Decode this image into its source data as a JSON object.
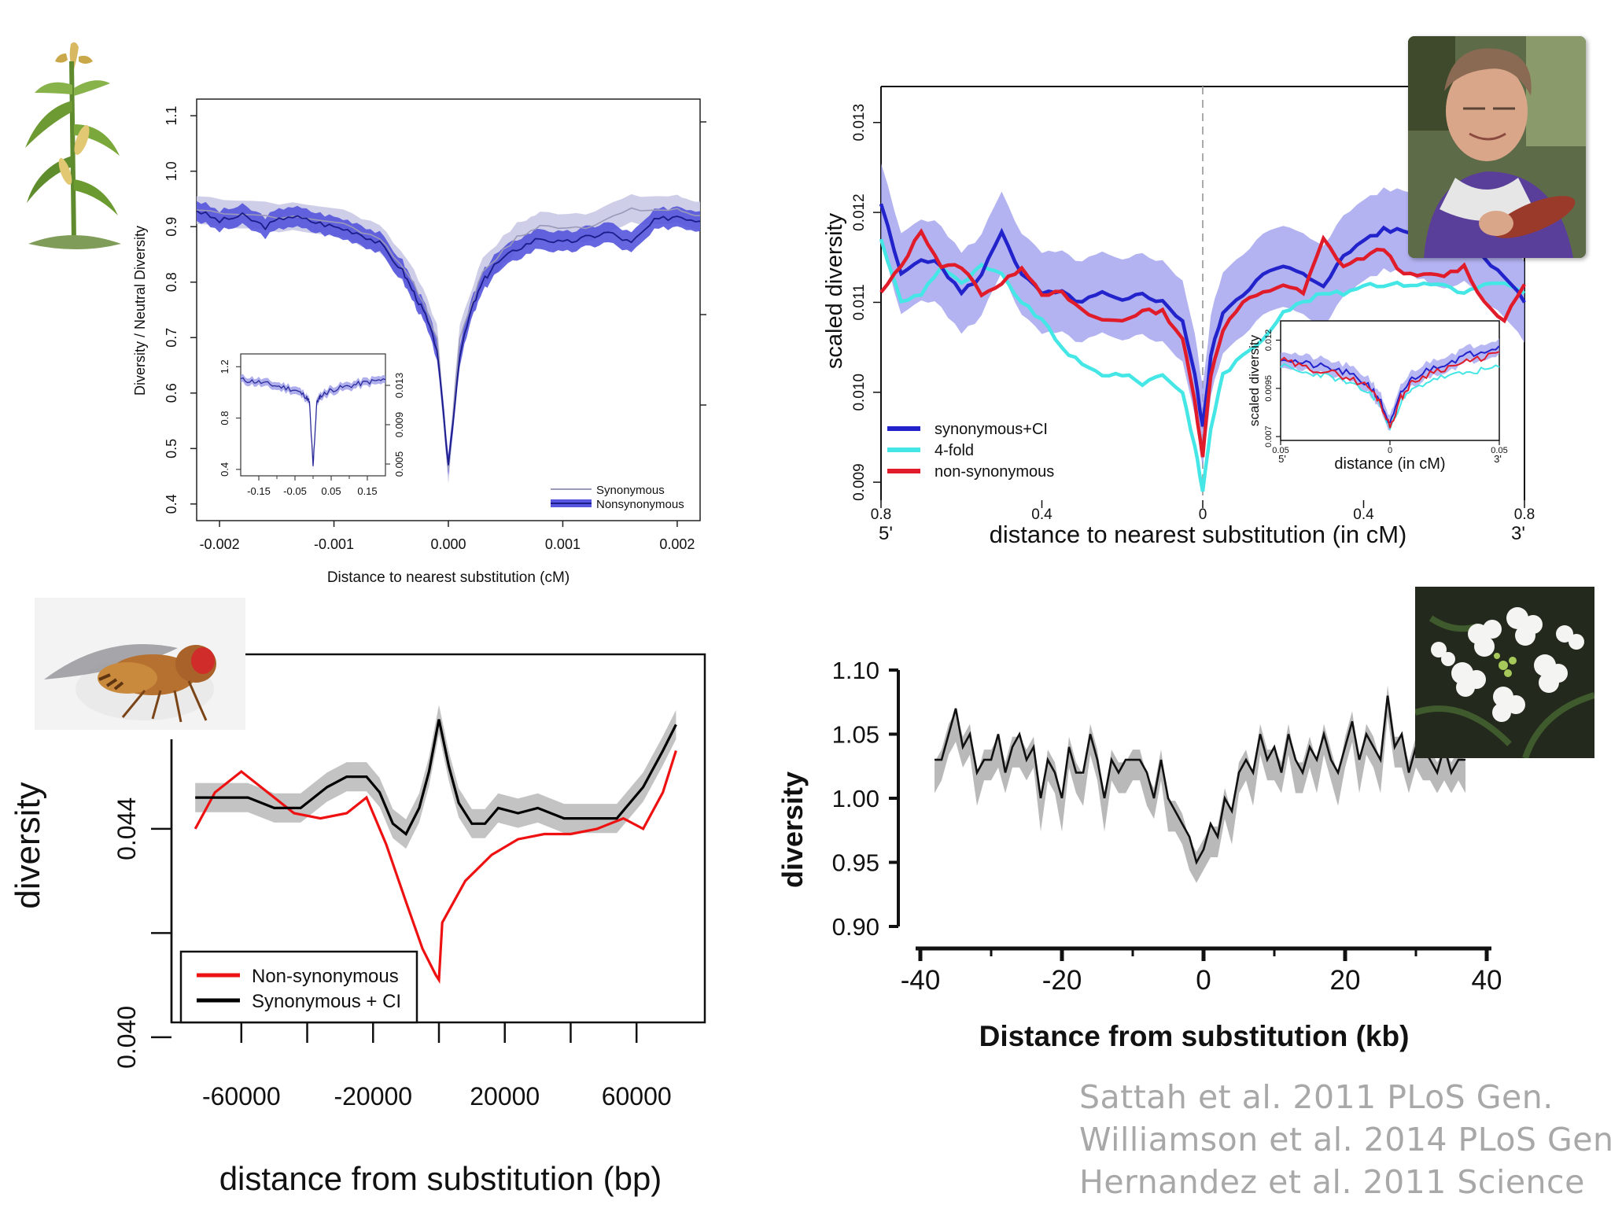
{
  "panels": {
    "maize": {
      "chart_data": {
        "type": "line",
        "xlabel": "Distance to nearest substitution (cM)",
        "ylabel": "Diversity / Neutral Diversity",
        "xlim": [
          -0.0022,
          0.0022
        ],
        "ylim": [
          0.37,
          1.13
        ],
        "x_ticks": [
          "-0.002",
          "-0.001",
          "0.000",
          "0.001",
          "0.002"
        ],
        "y_ticks": [
          "0.4",
          "0.5",
          "0.6",
          "0.7",
          "0.8",
          "0.9",
          "1.0",
          "1.1"
        ],
        "legend": {
          "position": "bottom-right",
          "entries": [
            "Synonymous",
            "Nonsynonymous"
          ]
        },
        "colors": {
          "synonymous": "#9a9ab8",
          "synonymous_band": "#c9c9e6",
          "nonsynonymous": "#1b1b8a",
          "nonsynonymous_band": "#5555dd"
        },
        "series": [
          {
            "name": "Synonymous",
            "x": [
              -0.0022,
              -0.0016,
              -0.001,
              -0.0006,
              -0.0003,
              -0.0001,
              0.0,
              0.0001,
              0.0003,
              0.0006,
              0.0008,
              0.0012,
              0.0016,
              0.002,
              0.0022
            ],
            "values": [
              0.93,
              0.92,
              0.91,
              0.88,
              0.8,
              0.7,
              0.46,
              0.7,
              0.82,
              0.88,
              0.9,
              0.9,
              0.93,
              0.93,
              0.92
            ]
          },
          {
            "name": "Nonsynonymous",
            "x": [
              -0.0022,
              -0.002,
              -0.0018,
              -0.0016,
              -0.0014,
              -0.0012,
              -0.001,
              -0.0008,
              -0.0006,
              -0.0004,
              -0.0003,
              -0.0002,
              -0.0001,
              0.0,
              0.0001,
              0.0002,
              0.0003,
              0.0004,
              0.0006,
              0.0008,
              0.001,
              0.0012,
              0.0014,
              0.0016,
              0.0018,
              0.002,
              0.0022
            ],
            "values": [
              0.93,
              0.91,
              0.92,
              0.9,
              0.92,
              0.91,
              0.9,
              0.89,
              0.87,
              0.82,
              0.78,
              0.74,
              0.68,
              0.47,
              0.67,
              0.75,
              0.8,
              0.83,
              0.86,
              0.88,
              0.87,
              0.88,
              0.89,
              0.87,
              0.91,
              0.92,
              0.91
            ]
          }
        ],
        "inset": {
          "x_ticks": [
            "-0.15",
            "-0.05",
            "0.05",
            "0.15"
          ],
          "y_left_ticks": [
            "0.4",
            "0.8",
            "1.2"
          ],
          "y_right_ticks": [
            "0.005",
            "0.009",
            "0.013"
          ],
          "xlim": [
            -0.2,
            0.2
          ],
          "ylim": [
            0.35,
            1.3
          ],
          "x": [
            -0.2,
            -0.15,
            -0.1,
            -0.05,
            -0.02,
            -0.01,
            0.0,
            0.01,
            0.02,
            0.05,
            0.1,
            0.15,
            0.2
          ],
          "values": [
            1.1,
            1.08,
            1.05,
            1.02,
            0.97,
            0.92,
            0.42,
            0.92,
            0.97,
            1.02,
            1.05,
            1.08,
            1.1
          ]
        }
      }
    },
    "human": {
      "chart_data": {
        "type": "line",
        "xlabel": "distance to nearest substitution (in cM)",
        "ylabel": "scaled diversity",
        "xlim": [
          -0.8,
          0.8
        ],
        "ylim": [
          0.0088,
          0.0134
        ],
        "x_ticks": [
          "0.8",
          "0.4",
          "0",
          "0.4",
          "0.8"
        ],
        "x_end_labels": [
          "5'",
          "3'"
        ],
        "y_ticks": [
          "0.009",
          "0.010",
          "0.011",
          "0.012",
          "0.013"
        ],
        "legend": {
          "position": "bottom-left",
          "entries": [
            "synonymous+CI",
            "4-fold",
            "non-synonymous"
          ]
        },
        "colors": {
          "synonymous_ci": "#2323cc",
          "band": "#9999ee",
          "fourfold": "#44e6e6",
          "nonsyn": "#e11c2a"
        },
        "series": [
          {
            "name": "synonymous+CI",
            "x": [
              -0.8,
              -0.75,
              -0.7,
              -0.65,
              -0.6,
              -0.55,
              -0.5,
              -0.45,
              -0.4,
              -0.35,
              -0.3,
              -0.25,
              -0.2,
              -0.15,
              -0.1,
              -0.05,
              -0.02,
              0.0,
              0.02,
              0.05,
              0.1,
              0.15,
              0.2,
              0.25,
              0.3,
              0.35,
              0.4,
              0.45,
              0.5,
              0.55,
              0.6,
              0.65,
              0.7,
              0.75,
              0.8
            ],
            "values": [
              0.0121,
              0.0113,
              0.0115,
              0.0114,
              0.0111,
              0.0113,
              0.0118,
              0.0113,
              0.0111,
              0.0111,
              0.011,
              0.0111,
              0.011,
              0.0111,
              0.011,
              0.0108,
              0.0102,
              0.0096,
              0.0104,
              0.0109,
              0.0111,
              0.0113,
              0.0114,
              0.0113,
              0.0112,
              0.0115,
              0.0117,
              0.0118,
              0.0118,
              0.0117,
              0.0116,
              0.0117,
              0.0115,
              0.0113,
              0.011
            ]
          },
          {
            "name": "4-fold",
            "x": [
              -0.8,
              -0.75,
              -0.7,
              -0.65,
              -0.6,
              -0.55,
              -0.5,
              -0.45,
              -0.4,
              -0.35,
              -0.3,
              -0.25,
              -0.2,
              -0.15,
              -0.1,
              -0.05,
              -0.02,
              0.0,
              0.02,
              0.05,
              0.1,
              0.15,
              0.2,
              0.25,
              0.3,
              0.35,
              0.4,
              0.45,
              0.5,
              0.55,
              0.6,
              0.65,
              0.7,
              0.75,
              0.8
            ],
            "values": [
              0.0117,
              0.011,
              0.0111,
              0.0114,
              0.0112,
              0.0114,
              0.0113,
              0.011,
              0.0108,
              0.0105,
              0.0103,
              0.0102,
              0.0102,
              0.0101,
              0.0102,
              0.01,
              0.0094,
              0.0089,
              0.0096,
              0.0102,
              0.0104,
              0.0106,
              0.0109,
              0.011,
              0.0111,
              0.0111,
              0.0112,
              0.0112,
              0.0112,
              0.0112,
              0.0112,
              0.0111,
              0.0112,
              0.0112,
              0.0111
            ]
          },
          {
            "name": "non-synonymous",
            "x": [
              -0.8,
              -0.75,
              -0.7,
              -0.65,
              -0.6,
              -0.55,
              -0.5,
              -0.45,
              -0.4,
              -0.35,
              -0.3,
              -0.25,
              -0.2,
              -0.15,
              -0.1,
              -0.05,
              -0.02,
              0.0,
              0.02,
              0.05,
              0.1,
              0.15,
              0.2,
              0.25,
              0.3,
              0.35,
              0.4,
              0.45,
              0.5,
              0.55,
              0.6,
              0.65,
              0.7,
              0.75,
              0.8
            ],
            "values": [
              0.0111,
              0.0114,
              0.0118,
              0.0114,
              0.0114,
              0.0111,
              0.0112,
              0.0114,
              0.0111,
              0.0111,
              0.0109,
              0.0108,
              0.0108,
              0.0109,
              0.0109,
              0.0106,
              0.0099,
              0.0093,
              0.0102,
              0.0107,
              0.011,
              0.0111,
              0.0112,
              0.0111,
              0.0117,
              0.0114,
              0.0115,
              0.0116,
              0.0113,
              0.0113,
              0.0113,
              0.0114,
              0.011,
              0.0108,
              0.0112
            ]
          }
        ],
        "inset": {
          "ylabel": "scaled diversity",
          "xlabel": "distance (in cM)",
          "x_ticks": [
            "0.05",
            "0",
            "0.05"
          ],
          "x_end_labels": [
            "5'",
            "3'"
          ],
          "y_ticks": [
            "0.007",
            "0.0095",
            "0.012"
          ],
          "xlim": [
            -0.05,
            0.05
          ],
          "ylim": [
            0.0068,
            0.013
          ],
          "x": [
            -0.05,
            -0.04,
            -0.03,
            -0.02,
            -0.01,
            -0.005,
            0.0,
            0.005,
            0.01,
            0.02,
            0.03,
            0.04,
            0.05
          ],
          "synonymous_ci": [
            0.0111,
            0.0108,
            0.0106,
            0.0103,
            0.0097,
            0.009,
            0.0076,
            0.0092,
            0.01,
            0.0106,
            0.011,
            0.0114,
            0.0117
          ],
          "fourfold": [
            0.0107,
            0.0103,
            0.0102,
            0.0098,
            0.0093,
            0.0088,
            0.0074,
            0.0088,
            0.0094,
            0.01,
            0.0102,
            0.0104,
            0.0106
          ],
          "nonsyn": [
            0.011,
            0.0106,
            0.0104,
            0.0101,
            0.0096,
            0.0089,
            0.0075,
            0.009,
            0.0098,
            0.0104,
            0.0107,
            0.011,
            0.0114
          ]
        }
      }
    },
    "fly": {
      "chart_data": {
        "type": "line",
        "xlabel": "distance from substitution (bp)",
        "ylabel": "diversity",
        "xlim": [
          -75000,
          75000
        ],
        "ylim": [
          0.0395,
          0.0475
        ],
        "x_ticks": [
          "-60000",
          "-20000",
          "20000",
          "60000"
        ],
        "x_tick_values": [
          -60000,
          -20000,
          20000,
          60000
        ],
        "x_minor_values": [
          -40000,
          0,
          40000
        ],
        "y_ticks": [
          "0.040",
          "0.044"
        ],
        "y_tick_values": [
          0.04,
          0.044
        ],
        "y_minor_values": [
          0.042,
          0.046
        ],
        "legend": {
          "position": "bottom-left",
          "entries": [
            "Non-synonymous",
            "Synonymous + CI"
          ]
        },
        "colors": {
          "nonsyn": "#ee1111",
          "syn": "#000000",
          "band": "#bdbdbd"
        },
        "series": [
          {
            "name": "Non-synonymous",
            "x": [
              -74000,
              -68000,
              -60000,
              -52000,
              -44000,
              -36000,
              -28000,
              -22000,
              -16000,
              -10000,
              -5000,
              -1000,
              0,
              1000,
              8000,
              16000,
              24000,
              32000,
              40000,
              48000,
              56000,
              62000,
              68000,
              72000
            ],
            "values": [
              0.044,
              0.0447,
              0.0451,
              0.0447,
              0.0443,
              0.0442,
              0.0443,
              0.0446,
              0.0437,
              0.0426,
              0.0417,
              0.0412,
              0.0411,
              0.0422,
              0.043,
              0.0435,
              0.0438,
              0.0439,
              0.0439,
              0.044,
              0.0442,
              0.044,
              0.0447,
              0.0455
            ]
          },
          {
            "name": "Synonymous + CI",
            "x": [
              -74000,
              -66000,
              -58000,
              -50000,
              -42000,
              -34000,
              -28000,
              -22000,
              -18000,
              -14000,
              -10000,
              -6000,
              -3000,
              0,
              3000,
              6000,
              10000,
              14000,
              18000,
              24000,
              30000,
              38000,
              46000,
              54000,
              62000,
              68000,
              72000
            ],
            "values": [
              0.0446,
              0.0446,
              0.0446,
              0.0444,
              0.0444,
              0.0448,
              0.045,
              0.045,
              0.0447,
              0.0441,
              0.0439,
              0.0444,
              0.0451,
              0.0461,
              0.0452,
              0.0445,
              0.0441,
              0.0441,
              0.0444,
              0.0443,
              0.0444,
              0.0442,
              0.0442,
              0.0442,
              0.0448,
              0.0455,
              0.046
            ]
          }
        ]
      }
    },
    "arabidopsis": {
      "chart_data": {
        "type": "line",
        "xlabel": "Distance from substitution (kb)",
        "ylabel": "diversity",
        "xlim": [
          -40,
          40
        ],
        "ylim": [
          0.895,
          1.105
        ],
        "x_ticks": [
          "-40",
          "-20",
          "0",
          "20",
          "40"
        ],
        "y_ticks": [
          "0.90",
          "0.95",
          "1.00",
          "1.05",
          "1.10"
        ],
        "colors": {
          "line": "#111111",
          "band": "#b5b5b5"
        },
        "series": [
          {
            "name": "",
            "x": [
              -38,
              -37,
              -36,
              -35,
              -34,
              -33,
              -32,
              -31,
              -30,
              -29,
              -28,
              -27,
              -26,
              -25,
              -24,
              -23,
              -22,
              -21,
              -20,
              -19,
              -18,
              -17,
              -16,
              -15,
              -14,
              -13,
              -12,
              -11,
              -10,
              -9,
              -8,
              -7,
              -6,
              -5,
              -4,
              -3,
              -2,
              -1,
              0,
              1,
              2,
              3,
              4,
              5,
              6,
              7,
              8,
              9,
              10,
              11,
              12,
              13,
              14,
              15,
              16,
              17,
              18,
              19,
              20,
              21,
              22,
              23,
              24,
              25,
              26,
              27,
              28,
              29,
              30,
              31,
              32,
              33,
              34,
              35,
              36,
              37
            ],
            "values": [
              1.03,
              1.03,
              1.05,
              1.07,
              1.04,
              1.05,
              1.02,
              1.03,
              1.03,
              1.05,
              1.02,
              1.04,
              1.05,
              1.03,
              1.04,
              1.0,
              1.03,
              1.02,
              1.0,
              1.04,
              1.02,
              1.02,
              1.05,
              1.03,
              1.0,
              1.03,
              1.02,
              1.03,
              1.03,
              1.03,
              1.02,
              1.0,
              1.03,
              1.0,
              0.99,
              0.98,
              0.97,
              0.95,
              0.96,
              0.98,
              0.97,
              1.0,
              0.99,
              1.02,
              1.03,
              1.02,
              1.05,
              1.03,
              1.04,
              1.02,
              1.05,
              1.03,
              1.02,
              1.04,
              1.03,
              1.05,
              1.03,
              1.02,
              1.04,
              1.06,
              1.03,
              1.05,
              1.04,
              1.03,
              1.08,
              1.04,
              1.05,
              1.02,
              1.04,
              1.04,
              1.03,
              1.02,
              1.04,
              1.02,
              1.03,
              1.03
            ]
          }
        ]
      }
    }
  },
  "citations": [
    "Sattah et al. 2011 PLoS Gen.",
    "Williamson et al. 2014 PLoS Gen",
    "Hernandez et al. 2011 Science"
  ],
  "icons": {
    "maize": "maize-plant-icon",
    "fly": "fruit-fly-icon",
    "portrait": "portrait-photo",
    "flower": "arabidopsis-flower-photo"
  }
}
